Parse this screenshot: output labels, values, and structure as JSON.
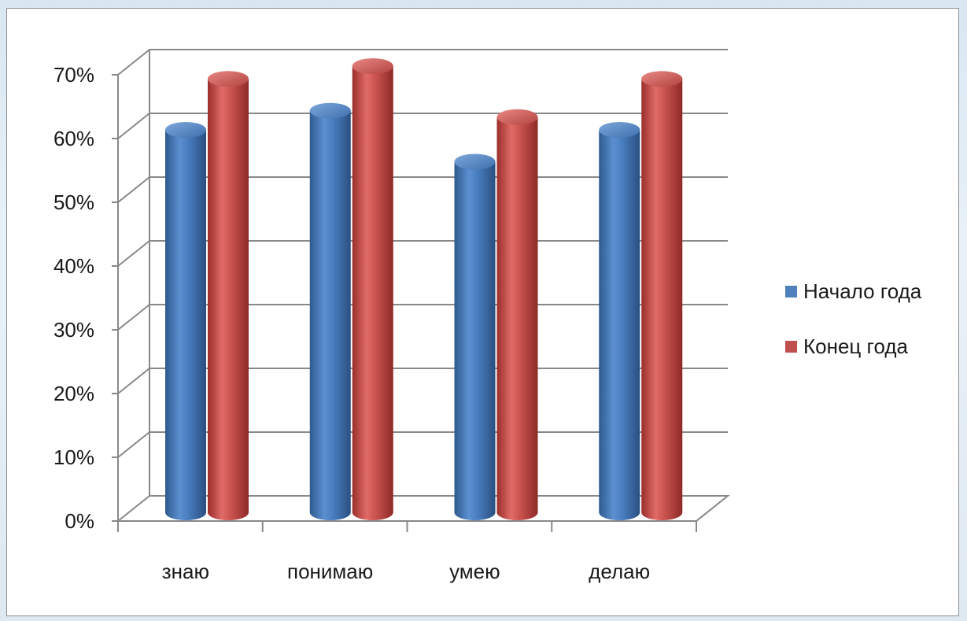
{
  "chart_data": {
    "type": "bar",
    "style": "3d-cylinder",
    "categories": [
      "знаю",
      "понимаю",
      "умею",
      "делаю"
    ],
    "series": [
      {
        "name": "Начало года",
        "color": "#4f81bd",
        "values": [
          60,
          63,
          55,
          60
        ]
      },
      {
        "name": "Конец года",
        "color": "#c0504d",
        "values": [
          68,
          70,
          62,
          68
        ]
      }
    ],
    "ylim": [
      0,
      70
    ],
    "y_ticks": [
      "0%",
      "10%",
      "20%",
      "30%",
      "40%",
      "50%",
      "60%",
      "70%"
    ],
    "grid": true,
    "legend_position": "right"
  }
}
